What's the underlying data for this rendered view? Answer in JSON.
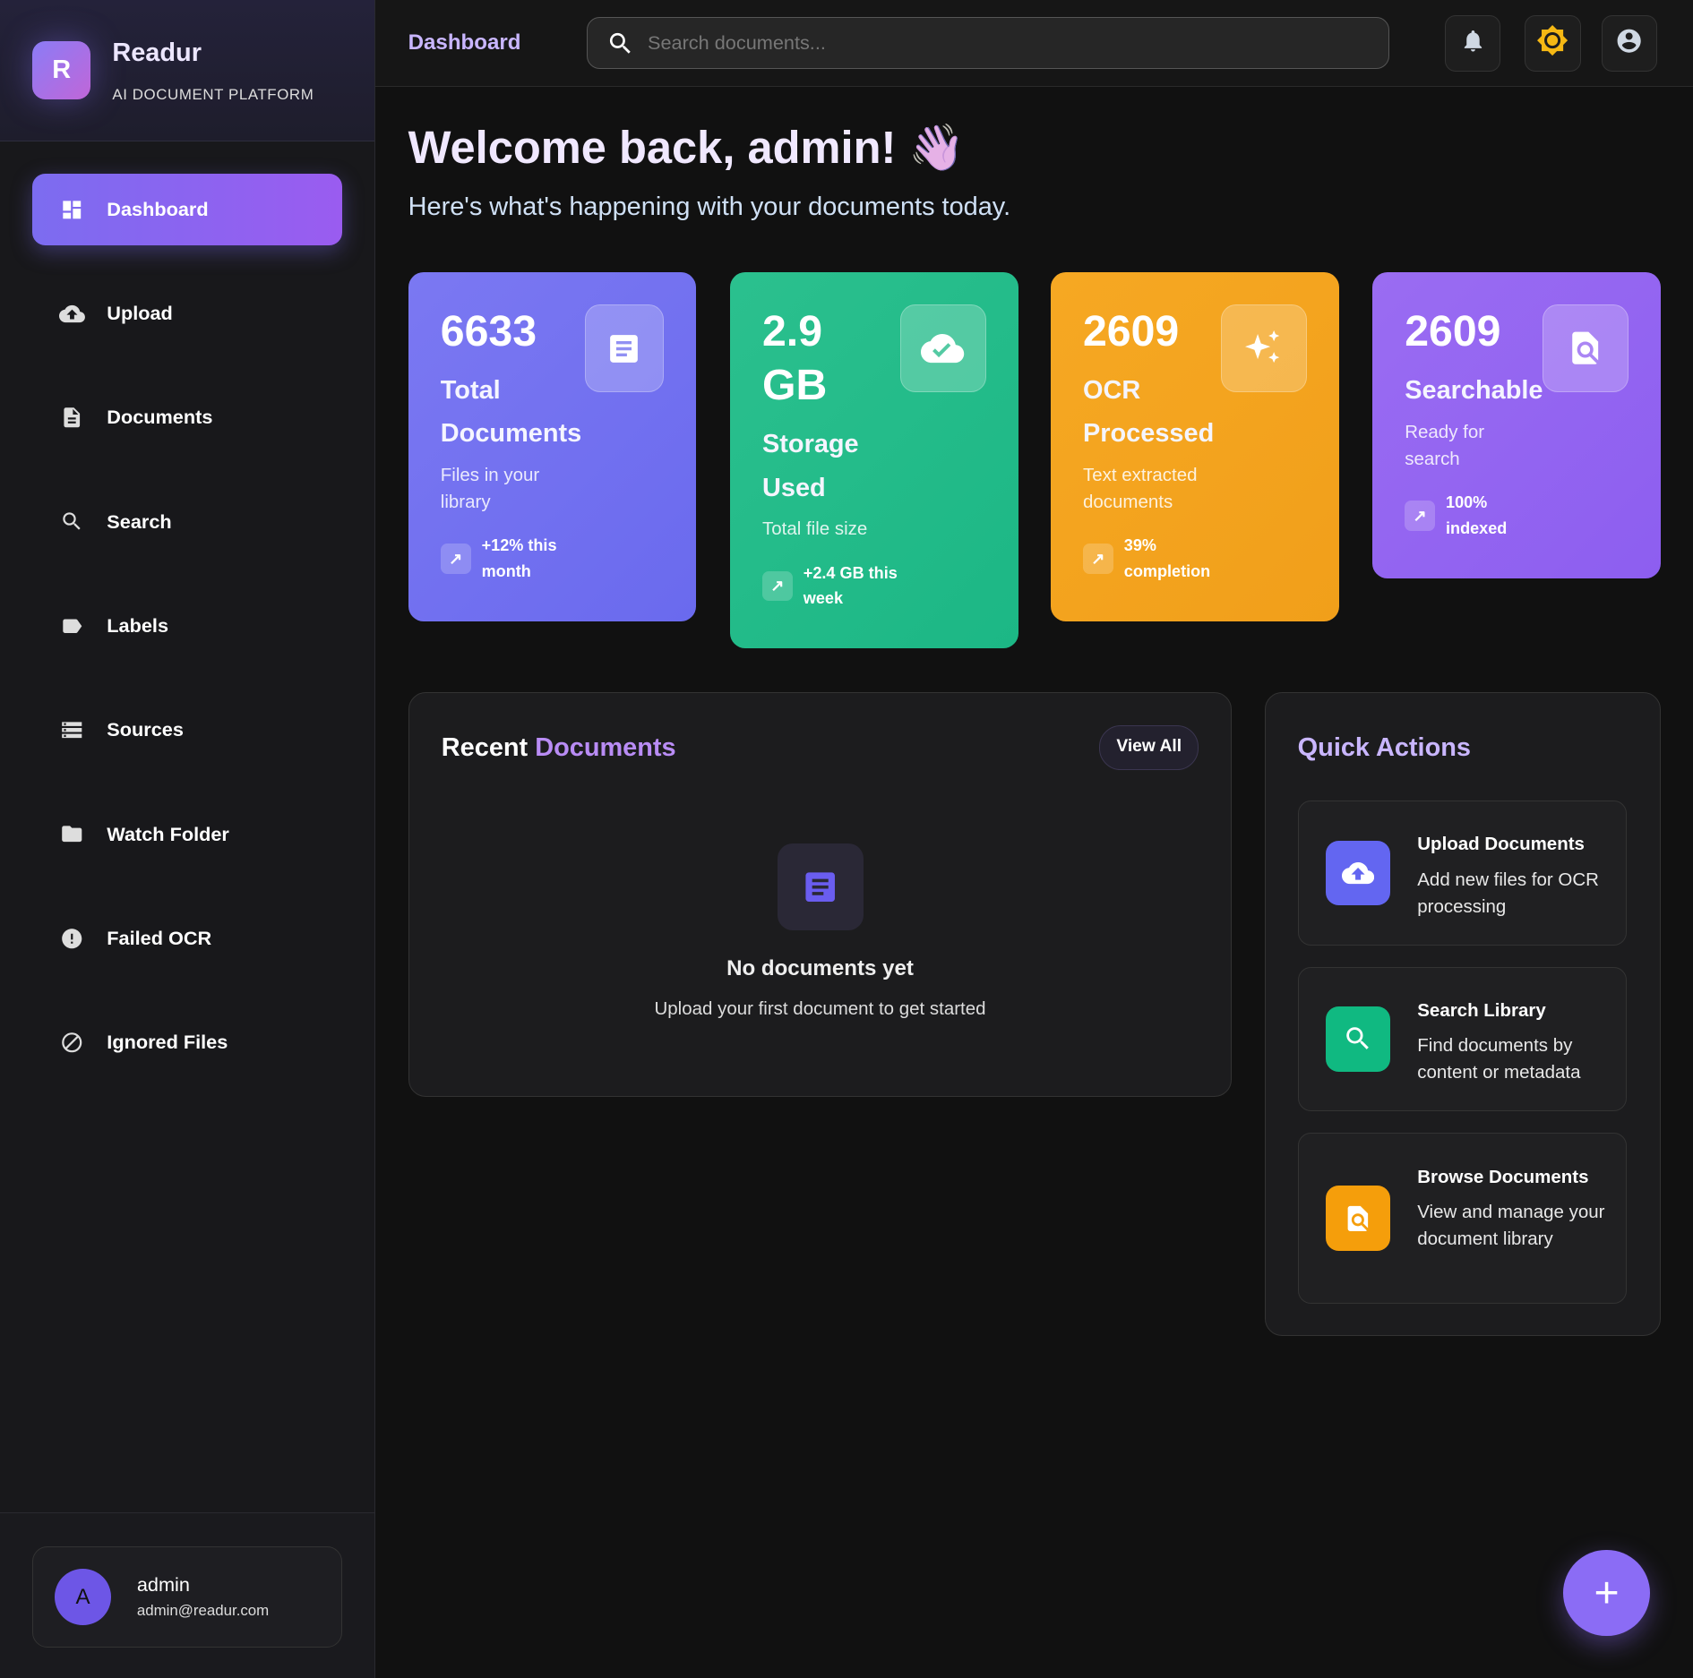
{
  "brand": {
    "name": "Readur",
    "tagline": "AI DOCUMENT PLATFORM",
    "logo_letter": "R"
  },
  "sidebar": {
    "items": [
      {
        "label": "Dashboard",
        "icon": "dashboard-icon",
        "active": true
      },
      {
        "label": "Upload",
        "icon": "cloud-upload-icon"
      },
      {
        "label": "Documents",
        "icon": "document-icon"
      },
      {
        "label": "Search",
        "icon": "search-icon"
      },
      {
        "label": "Labels",
        "icon": "label-icon"
      },
      {
        "label": "Sources",
        "icon": "storage-icon"
      },
      {
        "label": "Watch Folder",
        "icon": "folder-icon"
      },
      {
        "label": "Failed OCR",
        "icon": "error-icon"
      },
      {
        "label": "Ignored Files",
        "icon": "block-icon"
      }
    ]
  },
  "user": {
    "initial": "A",
    "name": "admin",
    "email": "admin@readur.com"
  },
  "topbar": {
    "breadcrumb": "Dashboard",
    "search_placeholder": "Search documents..."
  },
  "welcome": {
    "title": "Welcome back, admin!",
    "emoji": "👋",
    "subtitle": "Here's what's happening with your documents today."
  },
  "stats": [
    {
      "value": "6633",
      "label": "Total Documents",
      "desc": "Files in your library",
      "trend": "+12% this month",
      "color": "#6f6ef0",
      "icon": "document-icon"
    },
    {
      "value": "2.9 GB",
      "label": "Storage Used",
      "desc": "Total file size",
      "trend": "+2.4 GB this week",
      "color": "#1fbb87",
      "icon": "cloud-done-icon"
    },
    {
      "value": "2609",
      "label": "OCR Processed",
      "desc": "Text extracted documents",
      "trend": "39% completion",
      "color": "#f3a41e",
      "icon": "sparkle-icon"
    },
    {
      "value": "2609",
      "label": "Searchable",
      "desc": "Ready for search",
      "trend": "100% indexed",
      "color": "#9263f0",
      "icon": "find-in-page-icon"
    }
  ],
  "recent": {
    "title_a": "Recent",
    "title_b": "Documents",
    "view_all": "View All",
    "empty_title": "No documents yet",
    "empty_sub": "Upload your first document to get started"
  },
  "quick": {
    "title": "Quick Actions",
    "items": [
      {
        "title": "Upload Documents",
        "desc": "Add new files for OCR processing",
        "color": "#6366f1"
      },
      {
        "title": "Search Library",
        "desc": "Find documents by content or metadata",
        "color": "#10b981"
      },
      {
        "title": "Browse Documents",
        "desc": "View and manage your document library",
        "color": "#f59e0b"
      }
    ]
  },
  "fab_label": "+"
}
